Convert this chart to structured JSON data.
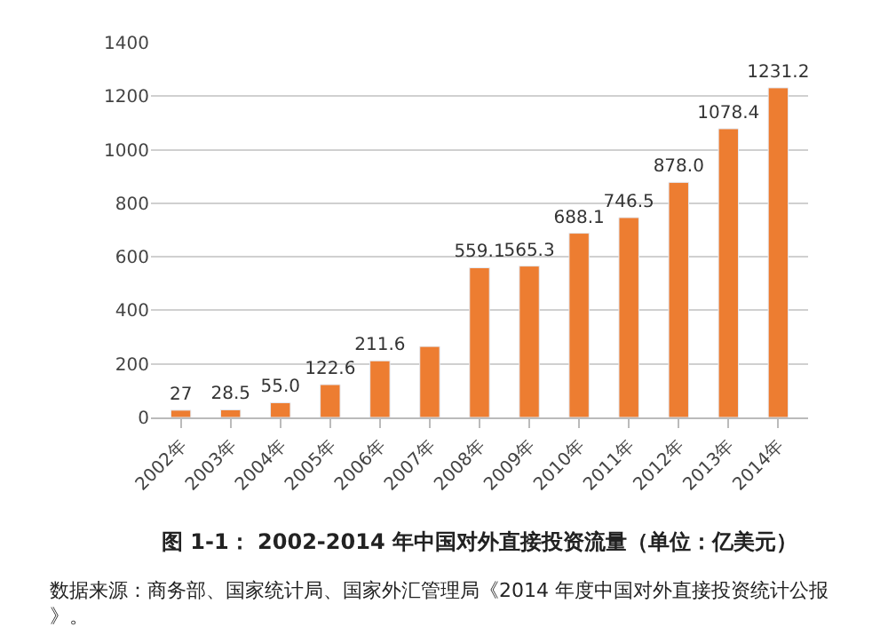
{
  "chart_data": {
    "type": "bar",
    "title": "图 1-1： 2002-2014 年中国对外直接投资流量（单位：亿美元）",
    "categories": [
      "2002年",
      "2003年",
      "2004年",
      "2005年",
      "2006年",
      "2007年",
      "2008年",
      "2009年",
      "2010年",
      "2011年",
      "2012年",
      "2013年",
      "2014年"
    ],
    "values": [
      27,
      28.5,
      55.0,
      122.6,
      211.6,
      265,
      559.1,
      565.3,
      688.1,
      746.5,
      878.0,
      1078.4,
      1231.2
    ],
    "value_labels": [
      "27",
      "28.5",
      "55.0",
      "122.6",
      "211.6",
      null,
      "559.1",
      "565.3",
      "688.1",
      "746.5",
      "878.0",
      "1078.4",
      "1231.2"
    ],
    "color": "#ed7d31",
    "ylim": [
      0,
      1400
    ],
    "yticks": [
      0,
      200,
      400,
      600,
      800,
      1000,
      1200,
      1400
    ],
    "grid": "y",
    "legend": false,
    "annotations": [
      "数据来源：商务部、国家统计局、国家外汇管理局《2014 年度中国对外直接投资统计公报》。"
    ]
  }
}
